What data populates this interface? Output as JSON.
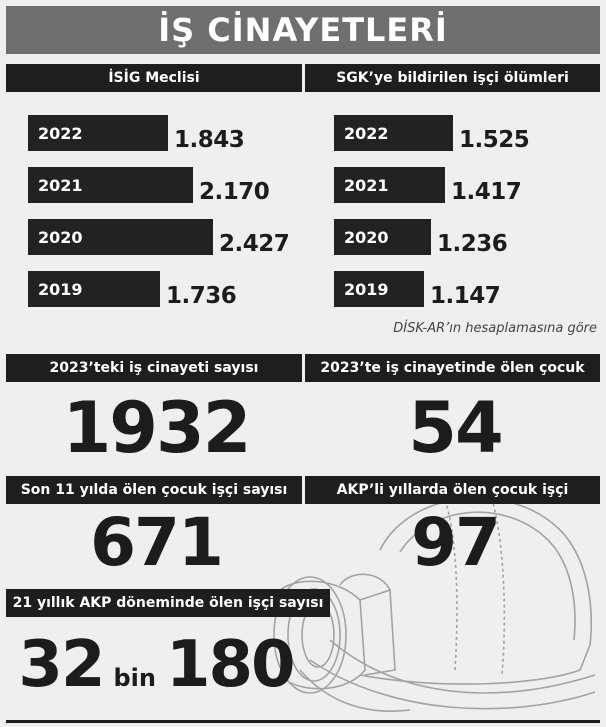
{
  "title": "İŞ CİNAYETLERİ",
  "colors": {
    "title_bg": "#6f6f6f",
    "header_bg": "#1e1e1e",
    "bar": "#222222",
    "background": "#efefef"
  },
  "chart_data": [
    {
      "type": "bar",
      "orientation": "horizontal",
      "title": "İSİG Meclisi",
      "categories": [
        "2022",
        "2021",
        "2020",
        "2019"
      ],
      "values": [
        1843,
        2170,
        2427,
        1736
      ],
      "value_labels": [
        "1.843",
        "2.170",
        "2.427",
        "1.736"
      ],
      "xlim": [
        0,
        2427
      ]
    },
    {
      "type": "bar",
      "orientation": "horizontal",
      "title": "SGK’ye bildirilen işçi ölümleri",
      "categories": [
        "2022",
        "2021",
        "2020",
        "2019"
      ],
      "values": [
        1525,
        1417,
        1236,
        1147
      ],
      "value_labels": [
        "1.525",
        "1.417",
        "1.236",
        "1.147"
      ],
      "xlim": [
        0,
        2427
      ],
      "source_note": "DİSK-AR’ın hesaplamasına göre"
    }
  ],
  "stats": {
    "work_murders_2023": {
      "label": "2023’teki iş cinayeti sayısı",
      "value": "1932"
    },
    "children_2023": {
      "label": "2023’te iş cinayetinde ölen çocuk",
      "value": "54"
    },
    "children_11y": {
      "label": "Son 11 yılda ölen çocuk işçi sayısı",
      "value": "671"
    },
    "children_akp": {
      "label": "AKP’li yıllarda ölen çocuk işçi",
      "value": "97"
    },
    "workers_akp": {
      "label": "21 yıllık AKP döneminde ölen işçi sayısı",
      "value_a": "32",
      "unit": "bin",
      "value_b": "180"
    }
  },
  "icons": {
    "illustration": "miner-helmet-icon"
  }
}
